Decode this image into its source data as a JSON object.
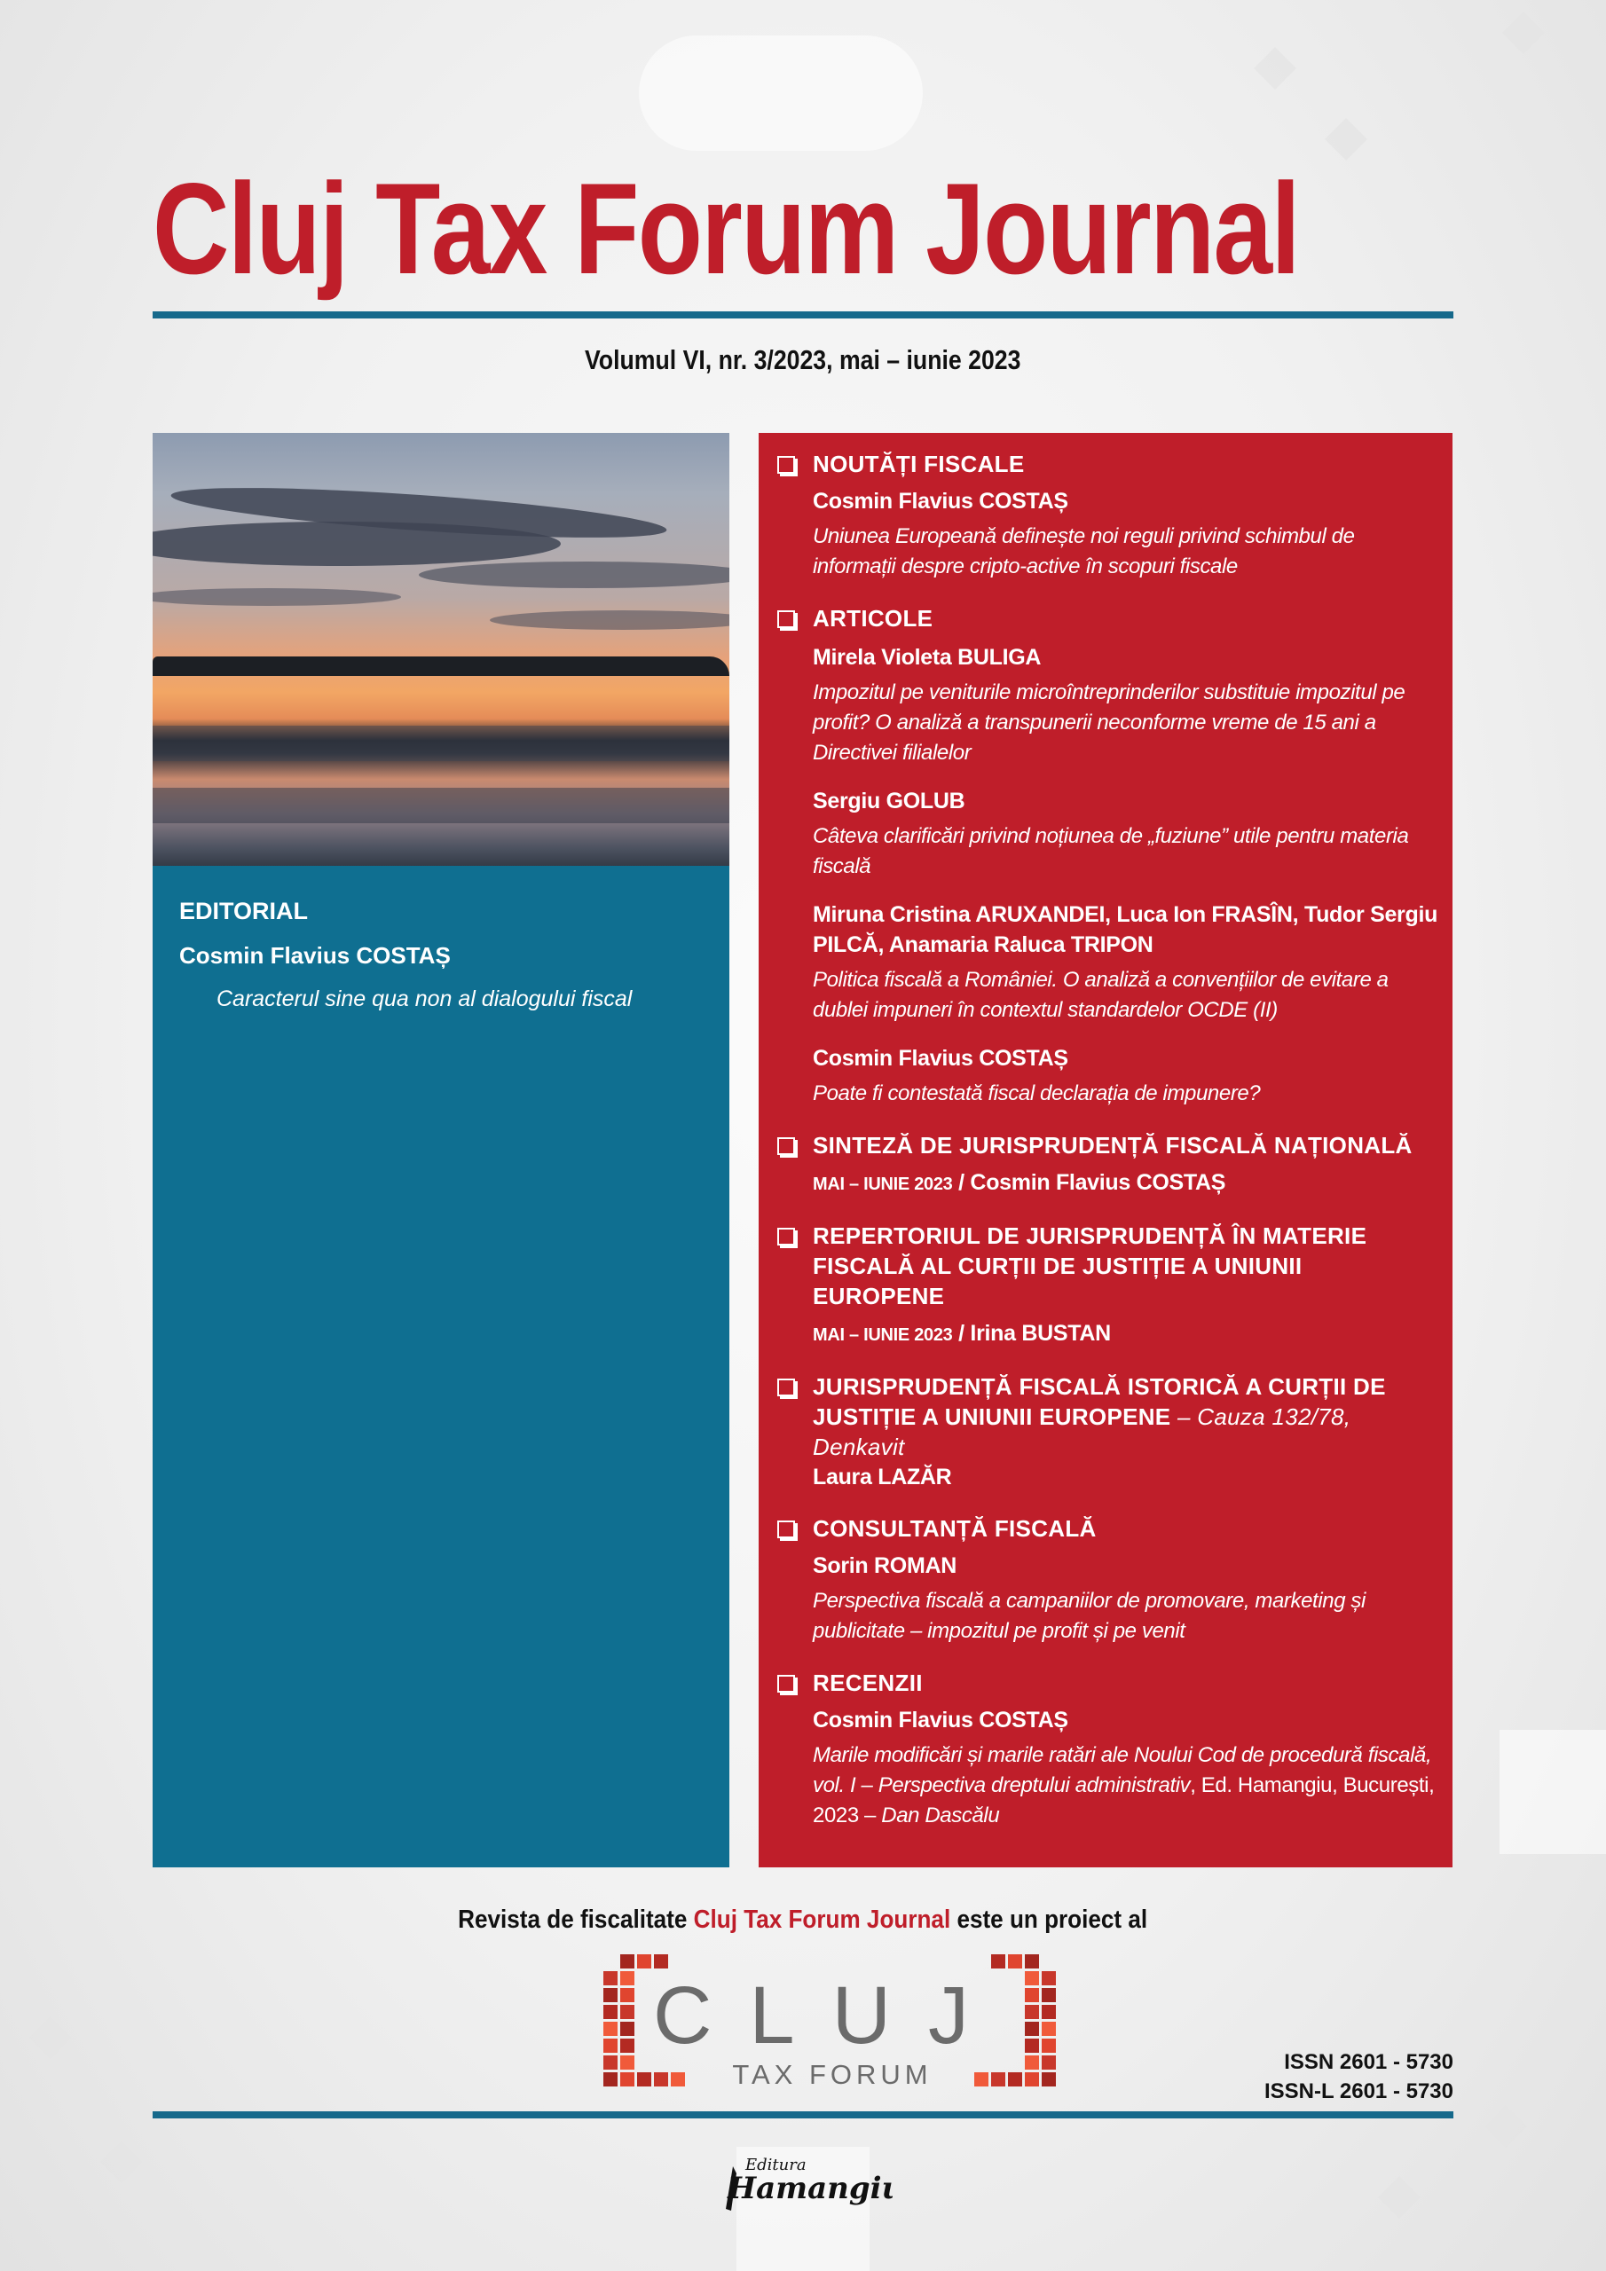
{
  "header": {
    "title": "Cluj Tax Forum Journal",
    "volume": "Volumul VI, nr. 3/2023, mai – iunie 2023"
  },
  "colors": {
    "brand_red": "#bf1e2a",
    "brand_blue": "#0f6f91",
    "rule_blue": "#16698b"
  },
  "editorial": {
    "section": "EDITORIAL",
    "author": "Cosmin Flavius COSTAȘ",
    "title": "Caracterul sine qua non al dialogului fiscal"
  },
  "contents": {
    "noutati": {
      "heading": "NOUTĂȚI FISCALE",
      "author": "Cosmin Flavius COSTAȘ",
      "title": "Uniunea Europeană definește noi reguli privind schimbul de informații despre cripto-active în scopuri fiscale"
    },
    "articole": {
      "heading": "ARTICOLE",
      "entries": [
        {
          "author": "Mirela Violeta BULIGA",
          "title": "Impozitul pe veniturile microîntreprinderilor substituie impozitul pe profit? O analiză a transpunerii neconforme vreme de 15 ani a Directivei filialelor"
        },
        {
          "author": "Sergiu GOLUB",
          "title": "Câteva clarificări privind noțiunea de „fuziune” utile pentru materia fiscală"
        },
        {
          "author": "Miruna Cristina ARUXANDEI, Luca Ion FRASÎN, Tudor Sergiu PILCĂ, Anamaria Raluca TRIPON",
          "title": "Politica fiscală a României. O analiză a convențiilor de evitare a dublei impuneri în contextul standardelor OCDE (II)"
        },
        {
          "author": "Cosmin Flavius COSTAȘ",
          "title": "Poate fi contestată fiscal declarația de impunere?"
        }
      ]
    },
    "sinteza": {
      "heading": "SINTEZĂ DE JURISPRUDENȚĂ FISCALĂ NAȚIONALĂ",
      "period": "MAI – IUNIE 2023",
      "author": " / Cosmin Flavius COSTAȘ"
    },
    "repertoriul": {
      "heading": "REPERTORIUL DE JURISPRUDENȚĂ ÎN MATERIE FISCALĂ AL CURȚII DE JUSTIȚIE A UNIUNII EUROPENE",
      "period": "MAI – IUNIE 2023",
      "author": " / Irina BUSTAN"
    },
    "istorica": {
      "heading": "JURISPRUDENȚĂ FISCALĂ ISTORICĂ A CURȚII DE JUSTIȚIE A UNIUNII EUROPENE",
      "case": " – Cauza 132/78, Denkavit",
      "author": "Laura LAZĂR"
    },
    "consultanta": {
      "heading": "CONSULTANȚĂ FISCALĂ",
      "author": "Sorin ROMAN",
      "title": "Perspectiva fiscală a campaniilor de promovare, marketing și publicitate – impozitul pe profit și pe venit"
    },
    "recenzii": {
      "heading": "RECENZII",
      "author": "Cosmin Flavius COSTAȘ",
      "book_title": "Marile modificări și marile ratări ale Noului Cod de procedură fiscală, vol. I – Perspectiva dreptului administrativ",
      "publisher": ", Ed. Hamangiu, București, 2023 – ",
      "reviewer": "Dan Dascălu"
    }
  },
  "footer": {
    "project_prefix": "Revista de fiscalitate ",
    "project_brand": "Cluj Tax Forum Journal",
    "project_suffix": " este un proiect al",
    "logo_main": "CLUJ",
    "logo_sub": "TAX FORUM",
    "issn": "ISSN 2601 - 5730",
    "issn_l": "ISSN-L 2601 - 5730",
    "publisher_logo_small": "Editura",
    "publisher_logo_main": "Hamangiu"
  }
}
